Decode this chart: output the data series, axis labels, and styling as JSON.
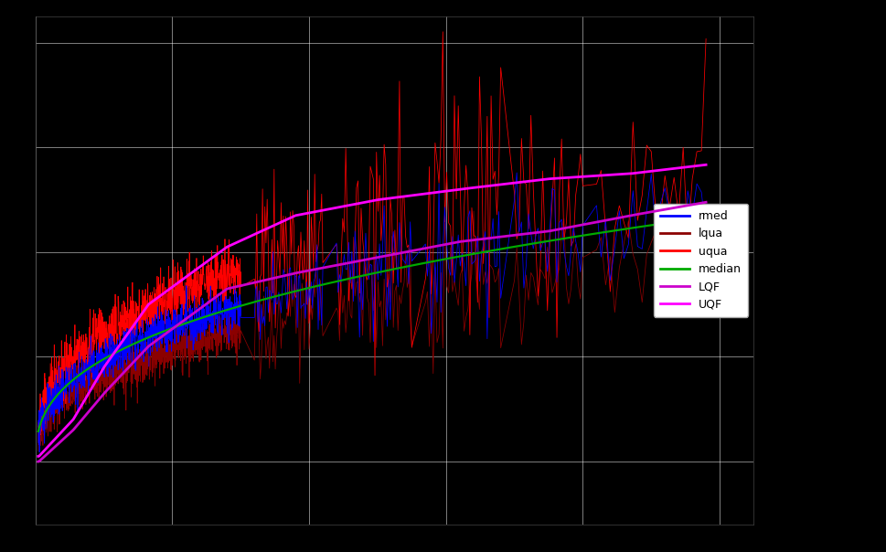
{
  "background_color": "#000000",
  "grid_color": "#ffffff",
  "grid_alpha": 0.5,
  "grid_linewidth": 0.7,
  "fig_width": 9.7,
  "fig_height": 6.04,
  "dpi": 100,
  "legend_entries": [
    "rmed",
    "lqua",
    "uqua",
    "median",
    "LQF",
    "UQF"
  ],
  "legend_colors": [
    "#0000ff",
    "#8b0000",
    "#ff0000",
    "#00aa00",
    "#cc00cc",
    "#ff00ff"
  ],
  "rmed_color": "#0000ff",
  "lqua_color": "#8b0000",
  "uqua_color": "#ff0000",
  "median_color": "#00aa00",
  "lqf_color": "#cc00cc",
  "uqf_color": "#ff00ff",
  "xlim": [
    0.0,
    1.05
  ],
  "ylim": [
    -0.12,
    0.85
  ],
  "n_xticks": 9,
  "n_yticks": 7,
  "lqf_knots_x": [
    0.005,
    0.055,
    0.1,
    0.165,
    0.28,
    0.38,
    0.5,
    0.62,
    0.75,
    0.87,
    1.0
  ],
  "lqf_knots_y": [
    0.0,
    0.06,
    0.13,
    0.22,
    0.33,
    0.36,
    0.39,
    0.42,
    0.44,
    0.47,
    0.5
  ],
  "uqf_knots_x": [
    0.005,
    0.055,
    0.1,
    0.165,
    0.28,
    0.38,
    0.5,
    0.62,
    0.75,
    0.87,
    1.0
  ],
  "uqf_knots_y": [
    0.01,
    0.08,
    0.18,
    0.3,
    0.41,
    0.47,
    0.5,
    0.52,
    0.54,
    0.55,
    0.57
  ]
}
